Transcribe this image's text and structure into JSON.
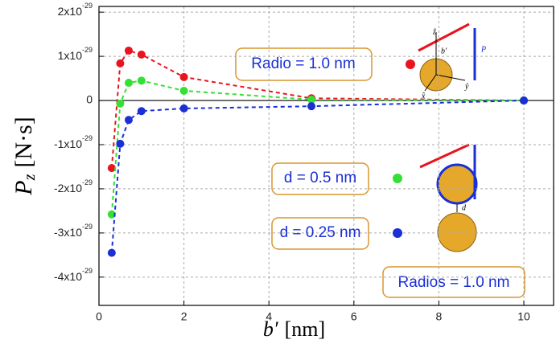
{
  "chart_data": {
    "type": "scatter",
    "ylabel": "P",
    "ylabel_sub": "z",
    "ylabel_unit": "[N·s]",
    "xlabel": "b′",
    "xlabel_unit": "[nm]",
    "xlim": [
      0,
      10.7
    ],
    "ylim": [
      -4.64e-29,
      2.13e-29
    ],
    "xticks": [
      0,
      2,
      4,
      6,
      8,
      10
    ],
    "yticks": [
      {
        "value": -4e-29,
        "label": "-4x10",
        "exponent": "-29"
      },
      {
        "value": -3e-29,
        "label": "-3x10",
        "exponent": "-29"
      },
      {
        "value": -2e-29,
        "label": "-2x10",
        "exponent": "-29"
      },
      {
        "value": -1e-29,
        "label": "-1x10",
        "exponent": "-29"
      },
      0,
      {
        "value": 1e-29,
        "label": "1x10",
        "exponent": "-29"
      },
      {
        "value": 2e-29,
        "label": "2x10",
        "exponent": "-29"
      }
    ],
    "grid": true,
    "line_style": "dashed",
    "series": [
      {
        "name": "Radio = 1.0 nm",
        "color": "#e8141e",
        "x": [
          0.3,
          0.5,
          0.7,
          1,
          2,
          5,
          10
        ],
        "values": [
          -1.53e-29,
          8.4e-30,
          1.13e-29,
          1.04e-29,
          5.3e-30,
          5e-31,
          0
        ]
      },
      {
        "name": "d = 0.5 nm",
        "color": "#33e033",
        "x": [
          0.3,
          0.5,
          0.7,
          1,
          2,
          5,
          10
        ],
        "values": [
          -2.58e-29,
          -7e-31,
          4e-30,
          4.5e-30,
          2.2e-30,
          2e-31,
          0
        ]
      },
      {
        "name": "d = 0.25 nm",
        "color": "#1a2fd6",
        "x": [
          0.3,
          0.5,
          0.7,
          1,
          2,
          5,
          10
        ],
        "values": [
          -3.45e-29,
          -9.8e-30,
          -4.4e-30,
          -2.4e-30,
          -1.8e-30,
          -1.3e-30,
          0
        ]
      }
    ],
    "annotation": "Radios = 1.0 nm",
    "inset_labels": [
      "ẑ",
      "b′",
      "P",
      "ŷ",
      "x̂",
      "d"
    ]
  }
}
